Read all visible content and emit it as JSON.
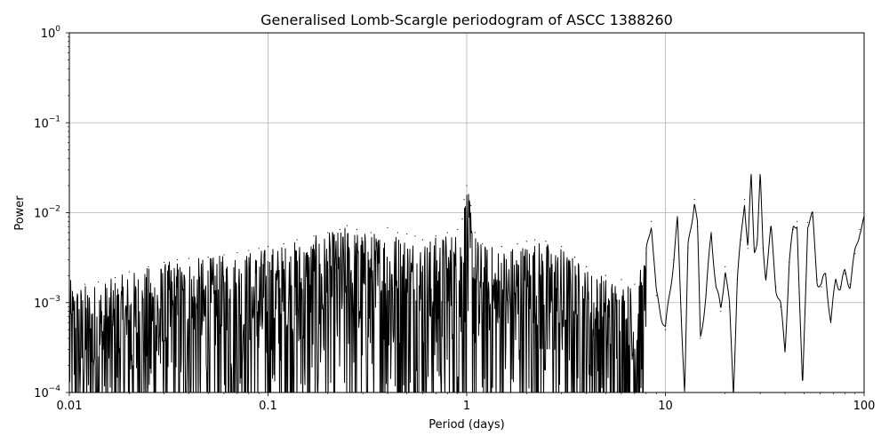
{
  "chart_data": {
    "type": "line",
    "title": "Generalised Lomb-Scargle periodogram of ASCC 1388260",
    "xlabel": "Period (days)",
    "ylabel": "Power",
    "x_scale": "log",
    "y_scale": "log",
    "xlim": [
      0.01,
      100
    ],
    "ylim": [
      0.0001,
      1
    ],
    "grid": true,
    "x_ticks": [
      {
        "value": 0.01,
        "label": "0.01"
      },
      {
        "value": 0.1,
        "label": "0.1"
      },
      {
        "value": 1,
        "label": "1"
      },
      {
        "value": 10,
        "label": "10"
      },
      {
        "value": 100,
        "label": "100"
      }
    ],
    "y_ticks": [
      {
        "value": 0.0001,
        "mantissa": "10",
        "exponent": "−4"
      },
      {
        "value": 0.001,
        "mantissa": "10",
        "exponent": "−3"
      },
      {
        "value": 0.01,
        "mantissa": "10",
        "exponent": "−2"
      },
      {
        "value": 0.1,
        "mantissa": "10",
        "exponent": "−1"
      },
      {
        "value": 1,
        "mantissa": "10",
        "exponent": "0"
      }
    ],
    "series": [
      {
        "color": "#000000",
        "x": [
          0.01,
          0.012,
          0.014,
          0.017,
          0.02,
          0.025,
          0.03,
          0.035,
          0.04,
          0.05,
          0.06,
          0.07,
          0.08,
          0.09,
          0.1,
          0.12,
          0.14,
          0.17,
          0.2,
          0.23,
          0.25,
          0.28,
          0.33,
          0.4,
          0.45,
          0.5,
          0.55,
          0.6,
          0.7,
          0.8,
          0.9,
          0.95,
          0.97,
          1.0,
          1.05,
          1.1,
          1.2,
          1.5,
          1.8,
          2.0,
          2.2,
          2.5,
          3.0,
          3.5,
          4.0,
          5.0,
          6.0,
          7.0,
          8.0,
          8.5,
          9.0,
          10.0,
          11.0,
          11.5,
          12.0,
          12.5,
          13.0,
          14.0,
          14.5,
          15.0,
          16.0,
          17.0,
          18.0,
          19.0,
          20.0,
          21.0,
          22.0,
          23.0,
          24.0,
          25.0,
          26.0,
          27.0,
          28.0,
          29.0,
          30.0,
          31.0,
          32.0,
          34.0,
          36.0,
          38.0,
          40.0,
          42.0,
          44.0,
          46.0,
          47.5,
          49.0,
          52.0,
          55.0,
          58.0,
          61.0,
          64.0,
          68.0,
          72.0,
          76.0,
          80.0,
          85.0,
          90.0,
          95.0,
          100.0
        ],
        "y": [
          0.0018,
          0.0016,
          0.0017,
          0.0019,
          0.0022,
          0.0025,
          0.0028,
          0.003,
          0.0031,
          0.0032,
          0.0034,
          0.0036,
          0.0038,
          0.004,
          0.0042,
          0.0045,
          0.005,
          0.0055,
          0.006,
          0.0065,
          0.0072,
          0.0065,
          0.006,
          0.0068,
          0.006,
          0.0058,
          0.0055,
          0.005,
          0.0055,
          0.006,
          0.0065,
          0.0085,
          0.014,
          0.02,
          0.012,
          0.006,
          0.0045,
          0.0042,
          0.0045,
          0.0048,
          0.005,
          0.0048,
          0.0042,
          0.0032,
          0.0025,
          0.002,
          0.0018,
          0.0016,
          0.0035,
          0.008,
          0.0012,
          0.0005,
          0.003,
          0.008,
          0.0008,
          0.0001,
          0.004,
          0.014,
          0.007,
          0.0004,
          0.0012,
          0.006,
          0.0015,
          0.0008,
          0.0025,
          0.0009,
          0.0001,
          0.0018,
          0.005,
          0.014,
          0.004,
          0.025,
          0.004,
          0.005,
          0.025,
          0.004,
          0.002,
          0.0065,
          0.0015,
          0.0009,
          0.0003,
          0.0028,
          0.0065,
          0.008,
          0.0008,
          0.0001,
          0.0078,
          0.009,
          0.0018,
          0.0015,
          0.0021,
          0.0006,
          0.0018,
          0.0015,
          0.0021,
          0.0016,
          0.0035,
          0.0065,
          0.008
        ]
      }
    ]
  }
}
